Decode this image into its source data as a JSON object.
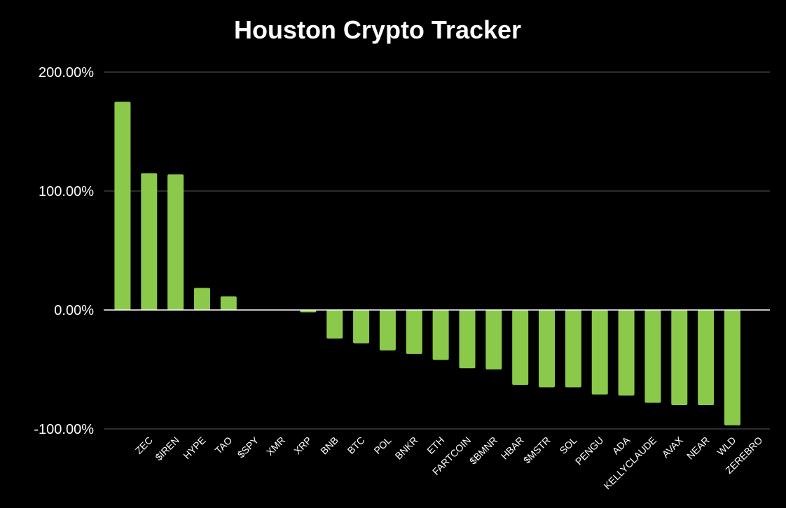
{
  "colors": {
    "background": "#000000",
    "bar": "#8bc94a",
    "grid": "#3a3a3a",
    "zero_line": "#ffffff",
    "text": "#ffffff"
  },
  "chart_data": {
    "type": "bar",
    "title": "Houston Crypto Tracker",
    "xlabel": "",
    "ylabel": "",
    "grid": true,
    "legend": "none",
    "ylim": [
      -100,
      200
    ],
    "yticks": [
      200,
      100,
      0,
      -100
    ],
    "ytick_labels": [
      "200.00%",
      "100.00%",
      "0.00%",
      "-100.00%"
    ],
    "categories": [
      "",
      "ZEC",
      "$IREN",
      "HYPE",
      "TAO",
      "$SPY",
      "XMR",
      "XRP",
      "BNB",
      "BTC",
      "POL",
      "BNKR",
      "ETH",
      "FARTCOIN",
      "$BMNR",
      "HBAR",
      "$MSTR",
      "SOL",
      "PENGU",
      "ADA",
      "KELLYCLAUDE",
      "AVAX",
      "NEAR",
      "WLD",
      "ZEREBRO"
    ],
    "values": [
      175,
      115,
      114,
      18.5,
      11.5,
      0,
      -0.5,
      -2,
      -24,
      -28,
      -34,
      -37,
      -42,
      -49,
      -50,
      -63,
      -65,
      -65,
      -71,
      -72,
      -78,
      -80,
      -80,
      -97,
      null
    ]
  }
}
